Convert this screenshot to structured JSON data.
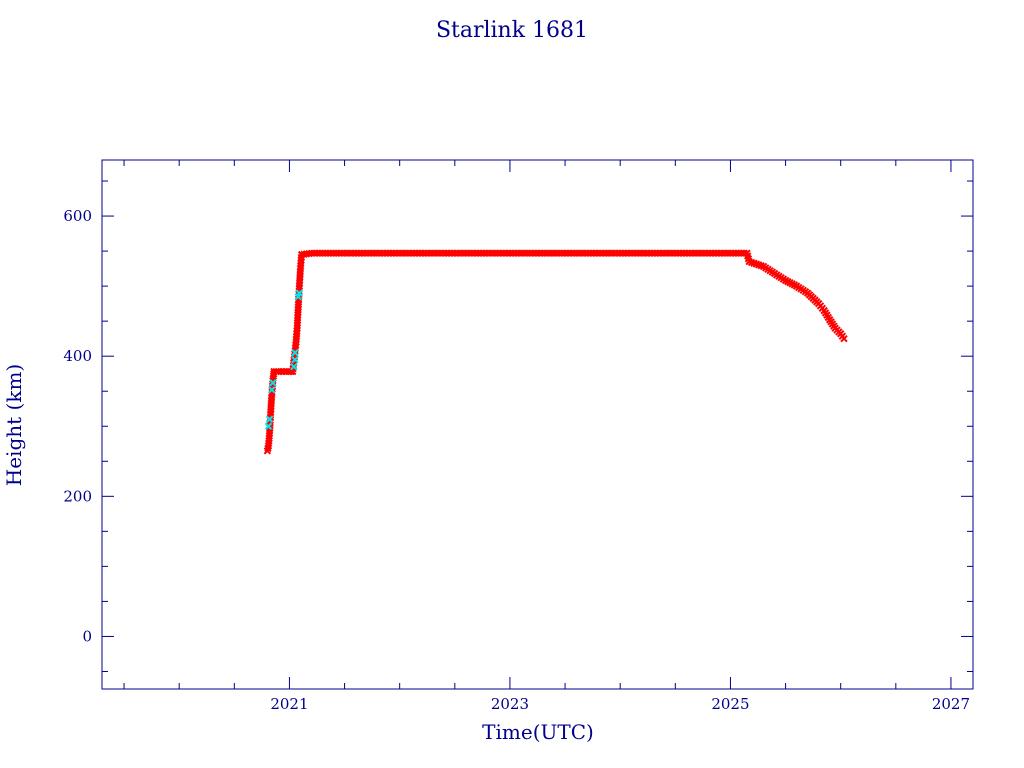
{
  "chart_data": {
    "type": "scatter",
    "title": "Starlink 1681",
    "xlabel": "Time(UTC)",
    "ylabel": "Height (km)",
    "xlim": [
      2019.3,
      2027.2
    ],
    "ylim": [
      -75,
      680
    ],
    "x_ticks": [
      2021,
      2023,
      2025,
      2027
    ],
    "x_tick_labels": [
      "2021",
      "2023",
      "2025",
      "2027"
    ],
    "y_ticks": [
      0,
      200,
      400,
      600
    ],
    "y_tick_labels": [
      "0",
      "200",
      "400",
      "600"
    ],
    "grid": false,
    "series": [
      {
        "color": "#ff0000",
        "marker": "x",
        "points": [
          [
            2020.8,
            265
          ],
          [
            2020.81,
            272
          ],
          [
            2020.82,
            290
          ],
          [
            2020.83,
            320
          ],
          [
            2020.84,
            345
          ],
          [
            2020.85,
            365
          ],
          [
            2020.86,
            378
          ],
          [
            2020.9,
            378
          ],
          [
            2020.95,
            378
          ],
          [
            2021.0,
            378
          ],
          [
            2021.03,
            378
          ],
          [
            2021.06,
            420
          ],
          [
            2021.07,
            440
          ],
          [
            2021.08,
            470
          ],
          [
            2021.09,
            500
          ],
          [
            2021.1,
            525
          ],
          [
            2021.11,
            545
          ],
          [
            2021.2,
            547
          ],
          [
            2021.5,
            547
          ],
          [
            2022.0,
            547
          ],
          [
            2022.5,
            547
          ],
          [
            2023.0,
            547
          ],
          [
            2023.5,
            547
          ],
          [
            2024.0,
            547
          ],
          [
            2024.5,
            547
          ],
          [
            2025.0,
            547
          ],
          [
            2025.15,
            547
          ],
          [
            2025.17,
            535
          ],
          [
            2025.3,
            528
          ],
          [
            2025.4,
            518
          ],
          [
            2025.5,
            508
          ],
          [
            2025.6,
            500
          ],
          [
            2025.7,
            490
          ],
          [
            2025.8,
            475
          ],
          [
            2025.85,
            465
          ],
          [
            2025.9,
            452
          ],
          [
            2025.95,
            440
          ],
          [
            2026.0,
            432
          ],
          [
            2026.03,
            425
          ]
        ]
      },
      {
        "color": "#00e5ee",
        "marker": "x",
        "points": [
          [
            2020.81,
            300
          ],
          [
            2020.82,
            310
          ],
          [
            2020.84,
            352
          ],
          [
            2020.85,
            362
          ],
          [
            2021.04,
            385
          ],
          [
            2021.05,
            395
          ],
          [
            2021.05,
            405
          ],
          [
            2021.08,
            485
          ],
          [
            2021.09,
            490
          ]
        ]
      }
    ]
  }
}
